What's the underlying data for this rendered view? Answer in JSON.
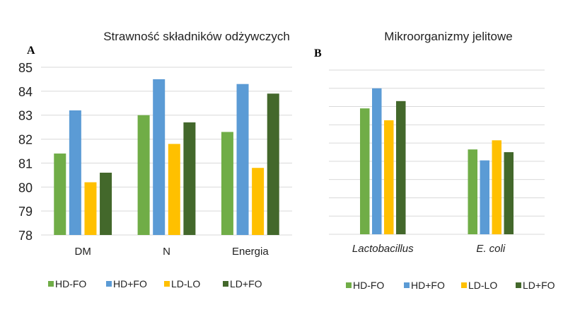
{
  "colors": {
    "HD-FO": "#70ad47",
    "HD+FO": "#5b9bd5",
    "LD-LO": "#ffc000",
    "LD+FO": "#43682b",
    "grid": "#d9d9d9"
  },
  "chart_data": [
    {
      "panel": "A",
      "type": "bar",
      "title": "Strawność składników odżywczych",
      "categories": [
        "DM",
        "N",
        "Energia"
      ],
      "ylim": [
        78,
        85
      ],
      "yticks": [
        "78",
        "79",
        "80",
        "81",
        "82",
        "83",
        "84",
        "85"
      ],
      "grid": true,
      "legend": "bottom",
      "series": [
        {
          "name": "HD-FO",
          "values": [
            81.4,
            83.0,
            82.3
          ]
        },
        {
          "name": "HD+FO",
          "values": [
            83.2,
            84.5,
            84.3
          ]
        },
        {
          "name": "LD-LO",
          "values": [
            80.2,
            81.8,
            80.8
          ]
        },
        {
          "name": "LD+FO",
          "values": [
            80.6,
            82.7,
            83.9
          ]
        }
      ]
    },
    {
      "panel": "B",
      "type": "bar",
      "title": "Mikroorganizmy jelitowe",
      "categories": [
        "Lactobacillus",
        "E. coli"
      ],
      "ylim": [
        0,
        9
      ],
      "grid": true,
      "legend": "bottom",
      "series": [
        {
          "name": "HD-FO",
          "values": [
            6.9,
            4.65
          ]
        },
        {
          "name": "HD+FO",
          "values": [
            8.0,
            4.05
          ]
        },
        {
          "name": "LD-LO",
          "values": [
            6.25,
            5.15
          ]
        },
        {
          "name": "LD+FO",
          "values": [
            7.3,
            4.5
          ]
        }
      ]
    }
  ]
}
